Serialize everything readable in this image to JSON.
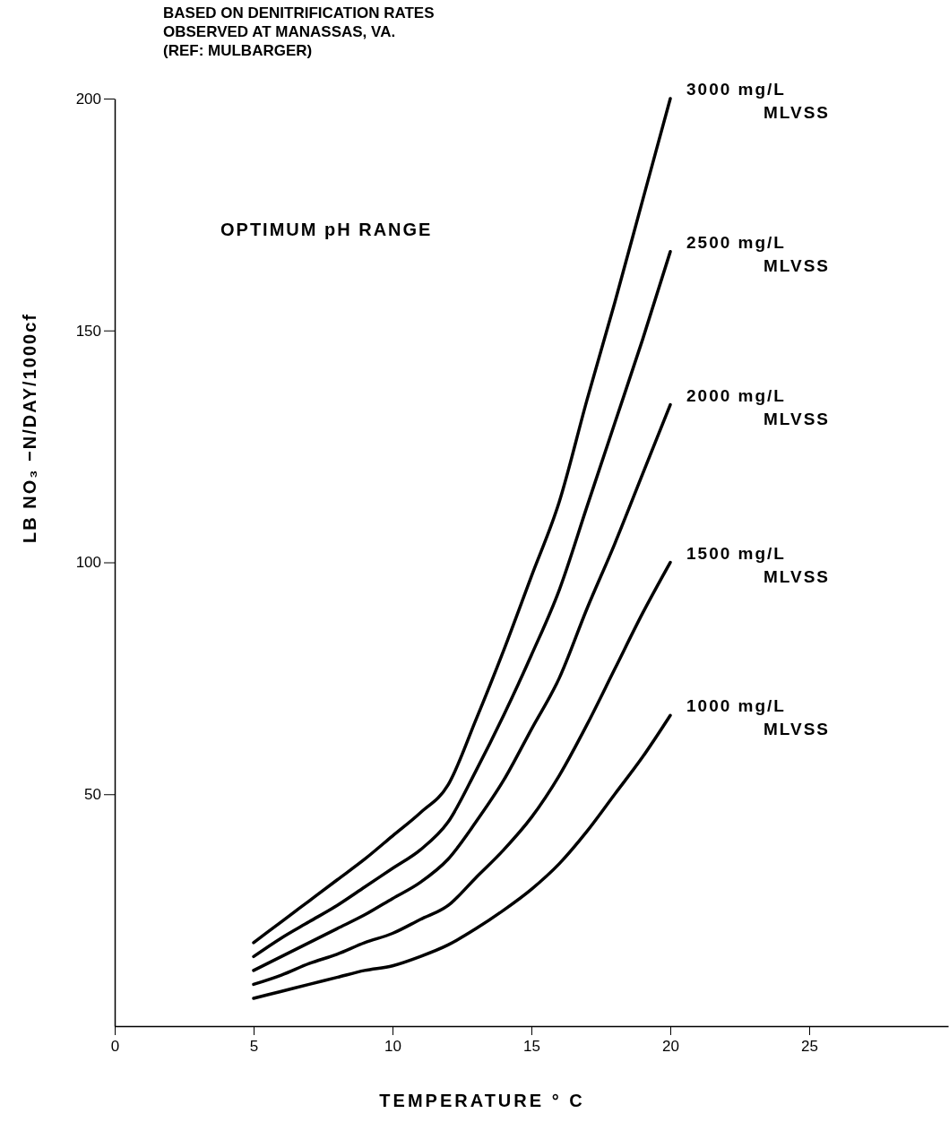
{
  "chart_data": {
    "type": "line",
    "title": "BASED ON DENITRIFICATION RATES",
    "subtitle": "OBSERVED AT MANASSAS, VA.",
    "annotations": [
      "(REF: MULBARGER)",
      "OPTIMUM pH RANGE"
    ],
    "xlabel": "TEMPERATURE ° C",
    "ylabel": "LB NO₃ −N/DAY/1000cf",
    "x": [
      5,
      6,
      7,
      8,
      9,
      10,
      11,
      12,
      13,
      14,
      15,
      16,
      17,
      18,
      19,
      20
    ],
    "xlim": [
      0,
      30
    ],
    "xticks": [
      0,
      5,
      10,
      15,
      20,
      25
    ],
    "ylim": [
      0,
      200
    ],
    "yticks": [
      50,
      100,
      150,
      200
    ],
    "grid": false,
    "legend": false,
    "marker": "none",
    "line_style": "solid",
    "series": [
      {
        "name": "3000 mg/L MLVSS",
        "color": "#000000",
        "values": [
          18,
          22.5,
          27,
          31.5,
          36,
          41,
          46,
          52,
          66,
          81,
          97,
          113,
          135,
          156,
          178,
          200
        ]
      },
      {
        "name": "2500 mg/L MLVSS",
        "color": "#000000",
        "values": [
          15,
          19,
          22.5,
          26,
          30,
          34,
          38,
          44,
          55,
          67,
          80,
          94,
          112,
          130,
          148,
          167
        ]
      },
      {
        "name": "2000 mg/L MLVSS",
        "color": "#000000",
        "values": [
          12,
          15,
          18,
          21,
          24,
          27.5,
          31,
          36,
          44,
          53,
          64,
          75,
          90,
          104,
          119,
          134
        ]
      },
      {
        "name": "1500 mg/L MLVSS",
        "color": "#000000",
        "values": [
          9,
          11,
          13.5,
          15.5,
          18,
          20,
          23,
          26,
          32,
          38,
          45,
          54,
          65,
          77,
          89,
          100
        ]
      },
      {
        "name": "1000 mg/L MLVSS",
        "color": "#000000",
        "values": [
          6,
          7.5,
          9,
          10.5,
          12,
          13,
          15,
          17.5,
          21,
          25,
          29.5,
          35,
          42,
          50,
          58,
          67
        ]
      }
    ]
  }
}
